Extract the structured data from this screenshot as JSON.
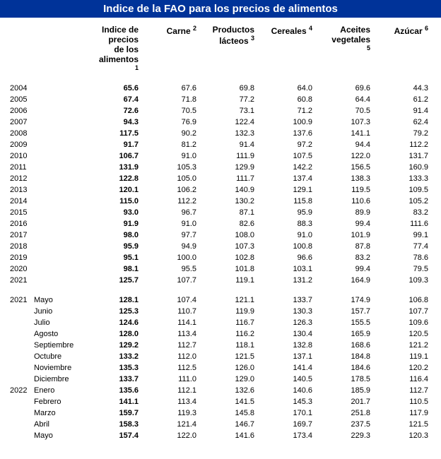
{
  "title": "Indice de la FAO para los precios de alimentos",
  "columns": [
    {
      "label": "Indice de precios de los alimentos",
      "sup": "1"
    },
    {
      "label": "Carne",
      "sup": "2"
    },
    {
      "label": "Productos lácteos",
      "sup": "3"
    },
    {
      "label": "Cereales",
      "sup": "4"
    },
    {
      "label": "Aceites vegetales",
      "sup": "5"
    },
    {
      "label": "Azúcar",
      "sup": "6"
    }
  ],
  "annual": [
    {
      "year": "2004",
      "v": [
        "65.6",
        "67.6",
        "69.8",
        "64.0",
        "69.6",
        "44.3"
      ]
    },
    {
      "year": "2005",
      "v": [
        "67.4",
        "71.8",
        "77.2",
        "60.8",
        "64.4",
        "61.2"
      ]
    },
    {
      "year": "2006",
      "v": [
        "72.6",
        "70.5",
        "73.1",
        "71.2",
        "70.5",
        "91.4"
      ]
    },
    {
      "year": "2007",
      "v": [
        "94.3",
        "76.9",
        "122.4",
        "100.9",
        "107.3",
        "62.4"
      ]
    },
    {
      "year": "2008",
      "v": [
        "117.5",
        "90.2",
        "132.3",
        "137.6",
        "141.1",
        "79.2"
      ]
    },
    {
      "year": "2009",
      "v": [
        "91.7",
        "81.2",
        "91.4",
        "97.2",
        "94.4",
        "112.2"
      ]
    },
    {
      "year": "2010",
      "v": [
        "106.7",
        "91.0",
        "111.9",
        "107.5",
        "122.0",
        "131.7"
      ]
    },
    {
      "year": "2011",
      "v": [
        "131.9",
        "105.3",
        "129.9",
        "142.2",
        "156.5",
        "160.9"
      ]
    },
    {
      "year": "2012",
      "v": [
        "122.8",
        "105.0",
        "111.7",
        "137.4",
        "138.3",
        "133.3"
      ]
    },
    {
      "year": "2013",
      "v": [
        "120.1",
        "106.2",
        "140.9",
        "129.1",
        "119.5",
        "109.5"
      ]
    },
    {
      "year": "2014",
      "v": [
        "115.0",
        "112.2",
        "130.2",
        "115.8",
        "110.6",
        "105.2"
      ]
    },
    {
      "year": "2015",
      "v": [
        "93.0",
        "96.7",
        "87.1",
        "95.9",
        "89.9",
        "83.2"
      ]
    },
    {
      "year": "2016",
      "v": [
        "91.9",
        "91.0",
        "82.6",
        "88.3",
        "99.4",
        "111.6"
      ]
    },
    {
      "year": "2017",
      "v": [
        "98.0",
        "97.7",
        "108.0",
        "91.0",
        "101.9",
        "99.1"
      ]
    },
    {
      "year": "2018",
      "v": [
        "95.9",
        "94.9",
        "107.3",
        "100.8",
        "87.8",
        "77.4"
      ]
    },
    {
      "year": "2019",
      "v": [
        "95.1",
        "100.0",
        "102.8",
        "96.6",
        "83.2",
        "78.6"
      ]
    },
    {
      "year": "2020",
      "v": [
        "98.1",
        "95.5",
        "101.8",
        "103.1",
        "99.4",
        "79.5"
      ]
    },
    {
      "year": "2021",
      "v": [
        "125.7",
        "107.7",
        "119.1",
        "131.2",
        "164.9",
        "109.3"
      ]
    }
  ],
  "monthly": [
    {
      "year": "2021",
      "month": "Mayo",
      "v": [
        "128.1",
        "107.4",
        "121.1",
        "133.7",
        "174.9",
        "106.8"
      ]
    },
    {
      "year": "",
      "month": "Junio",
      "v": [
        "125.3",
        "110.7",
        "119.9",
        "130.3",
        "157.7",
        "107.7"
      ]
    },
    {
      "year": "",
      "month": "Julio",
      "v": [
        "124.6",
        "114.1",
        "116.7",
        "126.3",
        "155.5",
        "109.6"
      ]
    },
    {
      "year": "",
      "month": "Agosto",
      "v": [
        "128.0",
        "113.4",
        "116.2",
        "130.4",
        "165.9",
        "120.5"
      ]
    },
    {
      "year": "",
      "month": "Septiembre",
      "v": [
        "129.2",
        "112.7",
        "118.1",
        "132.8",
        "168.6",
        "121.2"
      ]
    },
    {
      "year": "",
      "month": "Octubre",
      "v": [
        "133.2",
        "112.0",
        "121.5",
        "137.1",
        "184.8",
        "119.1"
      ]
    },
    {
      "year": "",
      "month": "Noviembre",
      "v": [
        "135.3",
        "112.5",
        "126.0",
        "141.4",
        "184.6",
        "120.2"
      ]
    },
    {
      "year": "",
      "month": "Diciembre",
      "v": [
        "133.7",
        "111.0",
        "129.0",
        "140.5",
        "178.5",
        "116.4"
      ]
    },
    {
      "year": "2022",
      "month": "Enero",
      "v": [
        "135.6",
        "112.1",
        "132.6",
        "140.6",
        "185.9",
        "112.7"
      ]
    },
    {
      "year": "",
      "month": "Febrero",
      "v": [
        "141.1",
        "113.4",
        "141.5",
        "145.3",
        "201.7",
        "110.5"
      ]
    },
    {
      "year": "",
      "month": "Marzo",
      "v": [
        "159.7",
        "119.3",
        "145.8",
        "170.1",
        "251.8",
        "117.9"
      ]
    },
    {
      "year": "",
      "month": "Abril",
      "v": [
        "158.3",
        "121.4",
        "146.7",
        "169.7",
        "237.5",
        "121.5"
      ]
    },
    {
      "year": "",
      "month": "Mayo",
      "v": [
        "157.4",
        "122.0",
        "141.6",
        "173.4",
        "229.3",
        "120.3"
      ]
    }
  ]
}
